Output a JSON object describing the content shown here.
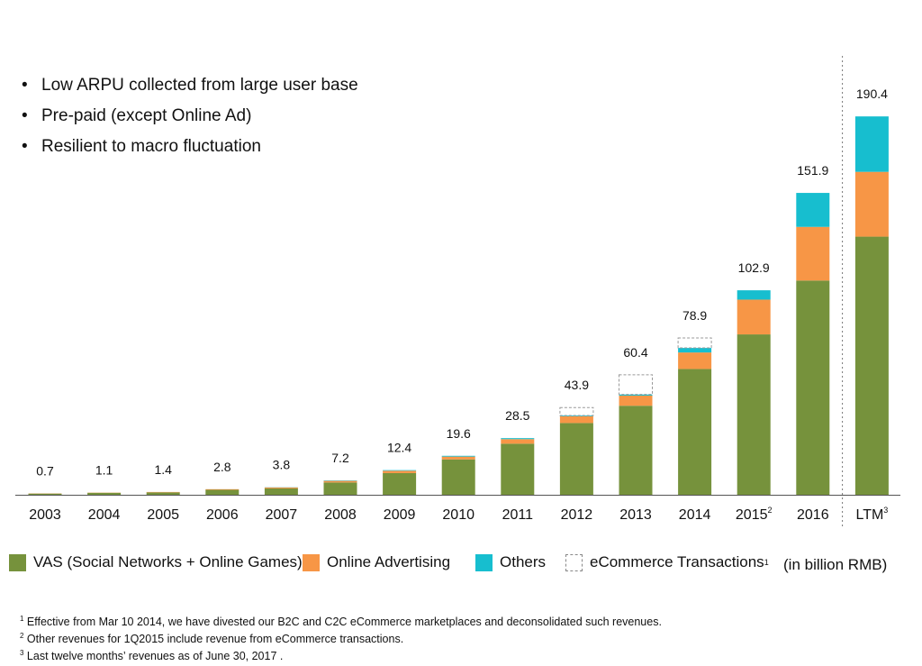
{
  "bullets": [
    "Low ARPU collected from large user base",
    "Pre-paid (except Online Ad)",
    "Resilient to macro fluctuation"
  ],
  "chart_data": {
    "type": "bar",
    "stacked": true,
    "categories": [
      "2003",
      "2004",
      "2005",
      "2006",
      "2007",
      "2008",
      "2009",
      "2010",
      "2011",
      "2012",
      "2013",
      "2014",
      "2015",
      "2016",
      "LTM"
    ],
    "category_superscripts": {
      "2015": "2",
      "LTM": "3"
    },
    "totals": [
      0.7,
      1.1,
      1.4,
      2.8,
      3.8,
      7.2,
      12.4,
      19.6,
      28.5,
      43.9,
      60.4,
      78.9,
      102.9,
      151.9,
      190.4
    ],
    "total_labels": [
      "0.7",
      "1.1",
      "1.4",
      "2.8",
      "3.8",
      "7.2",
      "12.4",
      "19.6",
      "28.5",
      "43.9",
      "60.4",
      "78.9",
      "102.9",
      "151.9",
      "190.4"
    ],
    "series": [
      {
        "name": "VAS (Social Networks + Online Games)",
        "color": "#76923c",
        "values": [
          0.6,
          1.0,
          1.2,
          2.5,
          3.2,
          6.2,
          10.9,
          17.8,
          25.7,
          36.1,
          44.8,
          63.3,
          80.7,
          107.8,
          129.9
        ]
      },
      {
        "name": "Online Advertising",
        "color": "#f79646",
        "values": [
          0.1,
          0.1,
          0.2,
          0.3,
          0.5,
          0.8,
          1.2,
          1.4,
          2.3,
          3.4,
          5.1,
          8.3,
          17.5,
          27.0,
          32.6
        ]
      },
      {
        "name": "Others",
        "color": "#17becf",
        "values": [
          0,
          0,
          0,
          0,
          0.1,
          0.2,
          0.3,
          0.4,
          0.5,
          0.4,
          0.6,
          2.3,
          4.7,
          17.1,
          27.9
        ]
      },
      {
        "name": "eCommerce Transactions",
        "color": "#ffffff",
        "dashed": true,
        "values": [
          0,
          0,
          0,
          0,
          0,
          0,
          0,
          0,
          0,
          4.0,
          9.9,
          5.0,
          0,
          0,
          0
        ]
      }
    ],
    "ylim": [
      0,
      200
    ],
    "grid": false,
    "legend_position": "bottom",
    "unit_note": "(in billion RMB)",
    "separator_before": "LTM"
  },
  "legend": [
    {
      "label": "VAS (Social Networks + Online Games)",
      "sup": ""
    },
    {
      "label": "Online Advertising",
      "sup": ""
    },
    {
      "label": "Others",
      "sup": ""
    },
    {
      "label": "eCommerce Transactions",
      "sup": "1"
    }
  ],
  "notes": [
    {
      "num": "1",
      "text": "  Effective from Mar 10 2014, we have divested our B2C and C2C eCommerce marketplaces and deconsolidated such revenues."
    },
    {
      "num": "2",
      "text": " Other revenues for 1Q2015 include revenue from eCommerce transactions."
    },
    {
      "num": "3",
      "text": " Last twelve months’ revenues as of June 30, 2017 ."
    }
  ]
}
